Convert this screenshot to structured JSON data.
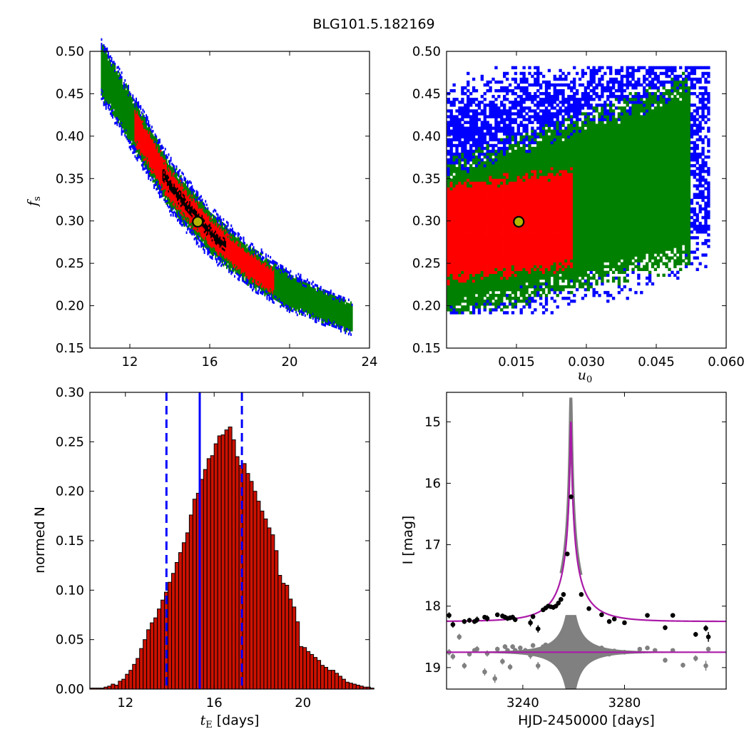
{
  "figure_title": "BLG101.5.182169",
  "colors": {
    "outer": "#0000ff",
    "mid": "#008000",
    "inner": "#ff0000",
    "core": "#000000",
    "marker": "#b5b500",
    "model": "#aa1aa8",
    "data": "#000000",
    "residual": "#808080",
    "hist": "#cc1100",
    "vline": "#0000ff"
  },
  "chart_data": [
    {
      "type": "heatmap",
      "panel": "tE-vs-fs",
      "xlabel": "",
      "ylabel": "f",
      "ylabel_sub": "s",
      "xlim": [
        10,
        24
      ],
      "ylim": [
        0.15,
        0.5
      ],
      "xticks": [
        12,
        16,
        20,
        24
      ],
      "xtick_labels": [
        "12",
        "16",
        "20",
        "24"
      ],
      "yticks": [
        0.15,
        0.2,
        0.25,
        0.3,
        0.35,
        0.4,
        0.45,
        0.5
      ],
      "ytick_labels": [
        "0.15",
        "0.20",
        "0.25",
        "0.30",
        "0.35",
        "0.40",
        "0.45",
        "0.50"
      ],
      "confidence_levels": [
        "core",
        "1-sigma",
        "2-sigma",
        "3-sigma"
      ],
      "ridge_curve": {
        "x": [
          10.5,
          12,
          14,
          16,
          18,
          20,
          22,
          23
        ],
        "y": [
          0.48,
          0.42,
          0.34,
          0.285,
          0.245,
          0.215,
          0.195,
          0.185
        ]
      },
      "best_fit": {
        "x": 15.4,
        "y": 0.299
      }
    },
    {
      "type": "heatmap",
      "panel": "u0-vs-fs",
      "xlabel": "u",
      "xlabel_sub": "0",
      "xlim": [
        0,
        0.06
      ],
      "ylim": [
        0.15,
        0.5
      ],
      "xticks": [
        0.015,
        0.03,
        0.045,
        0.06
      ],
      "xtick_labels": [
        "0.015",
        "0.030",
        "0.045",
        "0.060"
      ],
      "yticks": [
        0.15,
        0.2,
        0.25,
        0.3,
        0.35,
        0.4,
        0.45,
        0.5
      ],
      "ytick_labels": [
        "0.15",
        "0.20",
        "0.25",
        "0.30",
        "0.35",
        "0.40",
        "0.45",
        "0.50"
      ],
      "best_fit": {
        "x": 0.0155,
        "y": 0.299
      }
    },
    {
      "type": "bar",
      "panel": "tE-histogram",
      "xlabel": "t",
      "xlabel_sub": "E",
      "xlabel_suffix": " [days]",
      "ylabel": "normed N",
      "xlim": [
        10.4,
        23
      ],
      "ylim": [
        0,
        0.3
      ],
      "xticks": [
        12,
        16,
        20
      ],
      "xtick_labels": [
        "12",
        "16",
        "20"
      ],
      "yticks": [
        0,
        0.05,
        0.1,
        0.15,
        0.2,
        0.25,
        0.3
      ],
      "ytick_labels": [
        "0.00",
        "0.05",
        "0.10",
        "0.15",
        "0.20",
        "0.25",
        "0.30"
      ],
      "bin_start": 10.4,
      "bin_width": 0.16,
      "values": [
        0.001,
        0.001,
        0.001,
        0.001,
        0.002,
        0.003,
        0.005,
        0.004,
        0.008,
        0.01,
        0.015,
        0.019,
        0.025,
        0.031,
        0.041,
        0.05,
        0.06,
        0.067,
        0.072,
        0.081,
        0.09,
        0.098,
        0.108,
        0.117,
        0.128,
        0.138,
        0.148,
        0.158,
        0.176,
        0.192,
        0.198,
        0.212,
        0.222,
        0.233,
        0.236,
        0.248,
        0.256,
        0.257,
        0.262,
        0.265,
        0.252,
        0.235,
        0.226,
        0.228,
        0.218,
        0.21,
        0.2,
        0.19,
        0.18,
        0.172,
        0.163,
        0.156,
        0.14,
        0.115,
        0.107,
        0.105,
        0.091,
        0.083,
        0.068,
        0.043,
        0.042,
        0.038,
        0.035,
        0.032,
        0.029,
        0.024,
        0.022,
        0.019,
        0.019,
        0.016,
        0.013,
        0.01,
        0.007,
        0.006,
        0.005,
        0.004,
        0.003,
        0.002,
        0.002,
        0.001
      ],
      "vlines": {
        "median": 15.35,
        "lower": 13.85,
        "upper": 17.25
      }
    },
    {
      "type": "line",
      "panel": "light-curve",
      "xlabel": "HJD-2450000 [days]",
      "ylabel": "I [mag]",
      "xlim": [
        3210,
        3320
      ],
      "ylim": [
        19.35,
        14.52
      ],
      "xticks": [
        3240,
        3280
      ],
      "xtick_labels": [
        "3240",
        "3280"
      ],
      "yticks": [
        15,
        16,
        17,
        18,
        19
      ],
      "ytick_labels": [
        "15",
        "16",
        "17",
        "18",
        "19"
      ],
      "model": {
        "t0": 3258.9,
        "tE": 15.4,
        "u0": 0.0155,
        "fs": 0.299,
        "baseline": 18.25
      },
      "residual_offset": 18.75,
      "data_x": [
        3211,
        3212.5,
        3217,
        3219,
        3221,
        3222,
        3225,
        3226,
        3230,
        3232,
        3233,
        3234,
        3235,
        3236,
        3237,
        3243,
        3244,
        3246,
        3248,
        3249,
        3250,
        3251,
        3252,
        3253,
        3254,
        3255,
        3256,
        3257.5,
        3259,
        3263,
        3266,
        3271,
        3274,
        3276,
        3280,
        3289,
        3296,
        3299,
        3308,
        3312,
        3313
      ],
      "data_y": [
        18.15,
        18.3,
        18.25,
        18.23,
        18.25,
        18.22,
        18.18,
        18.2,
        18.14,
        18.16,
        18.18,
        18.2,
        18.19,
        18.18,
        18.22,
        18.27,
        18.17,
        18.37,
        18.06,
        18.03,
        18.0,
        18.01,
        18.02,
        18.0,
        17.95,
        17.89,
        17.81,
        17.15,
        16.22,
        17.81,
        18.04,
        18.14,
        18.25,
        18.21,
        18.27,
        18.15,
        18.35,
        18.15,
        18.46,
        18.36,
        18.5
      ],
      "data_err": [
        0.05,
        0.05,
        0.04,
        0.04,
        0.04,
        0.05,
        0.03,
        0.05,
        0.03,
        0.04,
        0.04,
        0.04,
        0.04,
        0.04,
        0.04,
        0.06,
        0.04,
        0.06,
        0.03,
        0.03,
        0.03,
        0.03,
        0.04,
        0.03,
        0.04,
        0.04,
        0.04,
        0.03,
        0.03,
        0.03,
        0.03,
        0.03,
        0.04,
        0.03,
        0.03,
        0.03,
        0.04,
        0.03,
        0.04,
        0.05,
        0.08
      ],
      "resid_x": [
        3211,
        3212.5,
        3215,
        3217,
        3219,
        3221,
        3222,
        3225,
        3226,
        3229,
        3230,
        3232,
        3233,
        3234,
        3235,
        3236,
        3237,
        3239,
        3241,
        3243,
        3244,
        3246,
        3248,
        3249,
        3250,
        3251,
        3252,
        3254,
        3256,
        3258,
        3260,
        3263,
        3266,
        3271,
        3274,
        3276,
        3280,
        3286,
        3289,
        3292,
        3296,
        3299,
        3303,
        3308,
        3312,
        3313
      ],
      "resid_y": [
        18.75,
        18.82,
        18.5,
        18.97,
        18.78,
        18.72,
        18.7,
        19.07,
        18.77,
        19.18,
        18.7,
        18.9,
        18.66,
        18.72,
        18.99,
        18.66,
        18.72,
        18.68,
        18.72,
        18.8,
        18.64,
        18.97,
        18.66,
        18.63,
        18.7,
        18.72,
        18.68,
        18.66,
        18.7,
        18.74,
        18.73,
        18.74,
        18.73,
        18.68,
        18.78,
        18.73,
        18.75,
        18.7,
        18.68,
        18.72,
        18.88,
        18.72,
        18.96,
        18.85,
        18.97,
        18.7
      ],
      "resid_err": [
        0.05,
        0.05,
        0.05,
        0.05,
        0.04,
        0.04,
        0.05,
        0.06,
        0.05,
        0.07,
        0.04,
        0.05,
        0.04,
        0.04,
        0.05,
        0.04,
        0.04,
        0.04,
        0.04,
        0.06,
        0.04,
        0.06,
        0.03,
        0.03,
        0.03,
        0.03,
        0.04,
        0.04,
        0.04,
        0.03,
        0.03,
        0.03,
        0.03,
        0.03,
        0.04,
        0.03,
        0.03,
        0.03,
        0.03,
        0.03,
        0.04,
        0.03,
        0.04,
        0.05,
        0.08,
        0.04
      ]
    }
  ]
}
